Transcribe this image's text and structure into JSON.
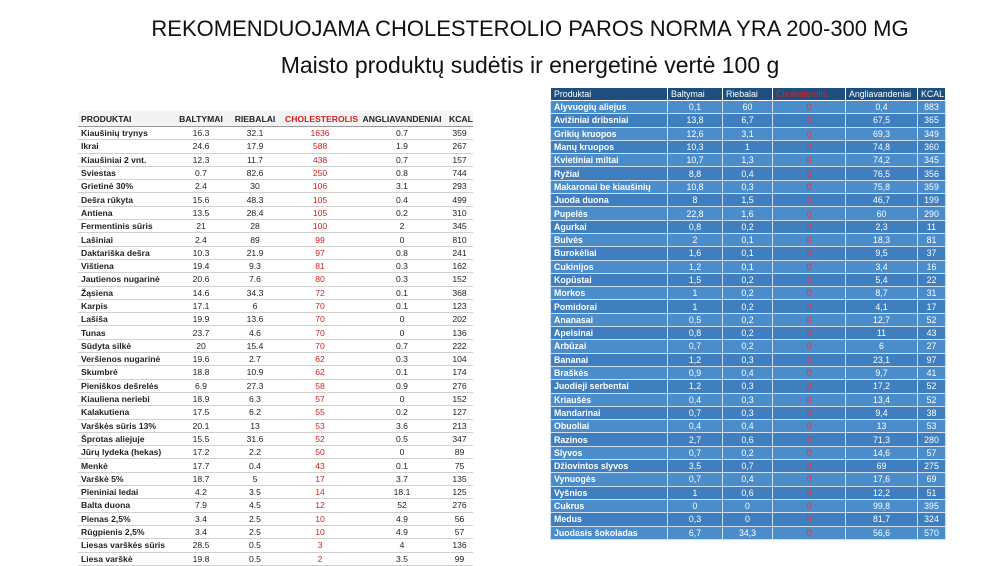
{
  "header": {
    "title": "REKOMENDUOJAMA CHOLESTEROLIO PAROS NORMA YRA 200-300 MG",
    "subtitle": "Maisto produktų sudėtis ir energetinė vertė 100 g"
  },
  "left_table": {
    "columns": [
      "PRODUKTAI",
      "BALTYMAI",
      "RIEBALAI",
      "CHOLESTEROLIS",
      "ANGLIAVANDENIAI",
      "KCAL"
    ],
    "rows": [
      [
        "Kiaušinių trynys",
        16.3,
        32.1,
        1636,
        0.7,
        359
      ],
      [
        "Ikrai",
        24.6,
        17.9,
        588,
        1.9,
        267
      ],
      [
        "Kiaušiniai 2 vnt.",
        12.3,
        11.7,
        438,
        0.7,
        157
      ],
      [
        "Sviestas",
        0.7,
        82.6,
        250,
        0.8,
        744
      ],
      [
        "Grietinė 30%",
        2.4,
        30,
        106,
        3.1,
        293
      ],
      [
        "Dešra rūkyta",
        15.6,
        48.3,
        105,
        0.4,
        499
      ],
      [
        "Antiena",
        13.5,
        28.4,
        105,
        0.2,
        310
      ],
      [
        "Fermentinis sūris",
        21,
        28,
        100,
        2,
        345
      ],
      [
        "Lašiniai",
        2.4,
        89,
        99,
        0,
        810
      ],
      [
        "Daktariška dešra",
        10.3,
        21.9,
        97,
        0.8,
        241
      ],
      [
        "Vištiena",
        19.4,
        9.3,
        81,
        0.3,
        162
      ],
      [
        "Jautienos nugarinė",
        20.6,
        7.6,
        80,
        0.3,
        152
      ],
      [
        "Žąsiena",
        14.6,
        34.3,
        72,
        0.1,
        368
      ],
      [
        "Karpis",
        17.1,
        6,
        70,
        0.1,
        123
      ],
      [
        "Lašiša",
        19.9,
        13.6,
        70,
        0,
        202
      ],
      [
        "Tunas",
        23.7,
        4.6,
        70,
        0,
        136
      ],
      [
        "Sūdyta silkė",
        20,
        15.4,
        70,
        0.7,
        222
      ],
      [
        "Veršienos nugarinė",
        19.6,
        2.7,
        62,
        0.3,
        104
      ],
      [
        "Skumbrė",
        18.8,
        10.9,
        62,
        0.1,
        174
      ],
      [
        "Pieniškos dešrelės",
        6.9,
        27.3,
        58,
        0.9,
        276
      ],
      [
        "Kiauliena neriebi",
        18.9,
        6.3,
        57,
        0,
        152
      ],
      [
        "Kalakutiena",
        17.5,
        6.2,
        55,
        0.2,
        127
      ],
      [
        "Varškės sūris 13%",
        20.1,
        13,
        53,
        3.6,
        213
      ],
      [
        "Šprotas aliejuje",
        15.5,
        31.6,
        52,
        0.5,
        347
      ],
      [
        "Jūrų lydeka (hekas)",
        17.2,
        2.2,
        50,
        0,
        89
      ],
      [
        "Menkė",
        17.7,
        0.4,
        43,
        0.1,
        75
      ],
      [
        "Varškė 5%",
        18.7,
        5,
        17,
        3.7,
        135
      ],
      [
        "Pieniniai ledai",
        4.2,
        3.5,
        14,
        18.1,
        125
      ],
      [
        "Balta duona",
        7.9,
        4.5,
        12,
        52,
        276
      ],
      [
        "Pienas 2,5%",
        3.4,
        2.5,
        10,
        4.9,
        56
      ],
      [
        "Rūgpienis 2,5%",
        3.4,
        2.5,
        10,
        4.9,
        57
      ],
      [
        "Liesas varškės sūris",
        28.5,
        0.5,
        3,
        4,
        136
      ],
      [
        "Liesa varškė",
        19.8,
        0.5,
        2,
        3.5,
        99
      ]
    ]
  },
  "right_table": {
    "columns": [
      "Produktai",
      "Baltymai",
      "Riebalai",
      "Cholesterolis",
      "Angliavandeniai",
      "KCAL"
    ],
    "rows": [
      [
        "Alyvuogių aliejus",
        "0,1",
        "60",
        "0",
        "0,4",
        "883"
      ],
      [
        "Avižiniai dribsniai",
        "13,8",
        "6,7",
        "0",
        "67,5",
        "365"
      ],
      [
        "Grikių kruopos",
        "12,6",
        "3,1",
        "0",
        "69,3",
        "349"
      ],
      [
        "Manų kruopos",
        "10,3",
        "1",
        "0",
        "74,8",
        "360"
      ],
      [
        "Kvietiniai miltai",
        "10,7",
        "1,3",
        "0",
        "74,2",
        "345"
      ],
      [
        "Ryžiai",
        "8,8",
        "0,4",
        "0",
        "76,5",
        "356"
      ],
      [
        "Makaronai be kiaušinių",
        "10,8",
        "0,3",
        "0",
        "75,8",
        "359"
      ],
      [
        "Juoda duona",
        "8",
        "1,5",
        "0",
        "46,7",
        "199"
      ],
      [
        "Pupelės",
        "22,8",
        "1,6",
        "0",
        "60",
        "290"
      ],
      [
        "Agurkai",
        "0,8",
        "0,2",
        "0",
        "2,3",
        "11"
      ],
      [
        "Bulvės",
        "2",
        "0,1",
        "0",
        "18,3",
        "81"
      ],
      [
        "Burokėliai",
        "1,6",
        "0,1",
        "0",
        "9,5",
        "37"
      ],
      [
        "Cukinijos",
        "1,2",
        "0,1",
        "0",
        "3,4",
        "16"
      ],
      [
        "Kopūstai",
        "1,5",
        "0,2",
        "0",
        "5,4",
        "22"
      ],
      [
        "Morkos",
        "1",
        "0,2",
        "0",
        "8,7",
        "31"
      ],
      [
        "Pomidorai",
        "1",
        "0,2",
        "0",
        "4,1",
        "17"
      ],
      [
        "Ananasai",
        "0,5",
        "0,2",
        "0",
        "12,7",
        "52"
      ],
      [
        "Apelsinai",
        "0,8",
        "0,2",
        "0",
        "11",
        "43"
      ],
      [
        "Arbūzai",
        "0,7",
        "0,2",
        "0",
        "6",
        "27"
      ],
      [
        "Bananai",
        "1,2",
        "0,3",
        "0",
        "23,1",
        "97"
      ],
      [
        "Braškės",
        "0,9",
        "0,4",
        "0",
        "9,7",
        "41"
      ],
      [
        "Juodieji serbentai",
        "1,2",
        "0,3",
        "0",
        "17,2",
        "52"
      ],
      [
        "Kriaušės",
        "0,4",
        "0,3",
        "0",
        "13,4",
        "52"
      ],
      [
        "Mandarinai",
        "0,7",
        "0,3",
        "0",
        "9,4",
        "38"
      ],
      [
        "Obuoliai",
        "0,4",
        "0,4",
        "0",
        "13",
        "53"
      ],
      [
        "Razinos",
        "2,7",
        "0,6",
        "0",
        "71,3",
        "280"
      ],
      [
        "Slyvos",
        "0,7",
        "0,2",
        "0",
        "14,6",
        "57"
      ],
      [
        "Džiovintos slyvos",
        "3,5",
        "0,7",
        "0",
        "69",
        "275"
      ],
      [
        "Vynuogės",
        "0,7",
        "0,4",
        "0",
        "17,6",
        "69"
      ],
      [
        "Vyšnios",
        "1",
        "0,6",
        "0",
        "12,2",
        "51"
      ],
      [
        "Cukrus",
        "0",
        "0",
        "0",
        "99,8",
        "395"
      ],
      [
        "Medus",
        "0,3",
        "0",
        "0",
        "81,7",
        "324"
      ],
      [
        "Juodasis šokoladas",
        "6,7",
        "34,3",
        "0",
        "56,6",
        "570"
      ]
    ]
  }
}
